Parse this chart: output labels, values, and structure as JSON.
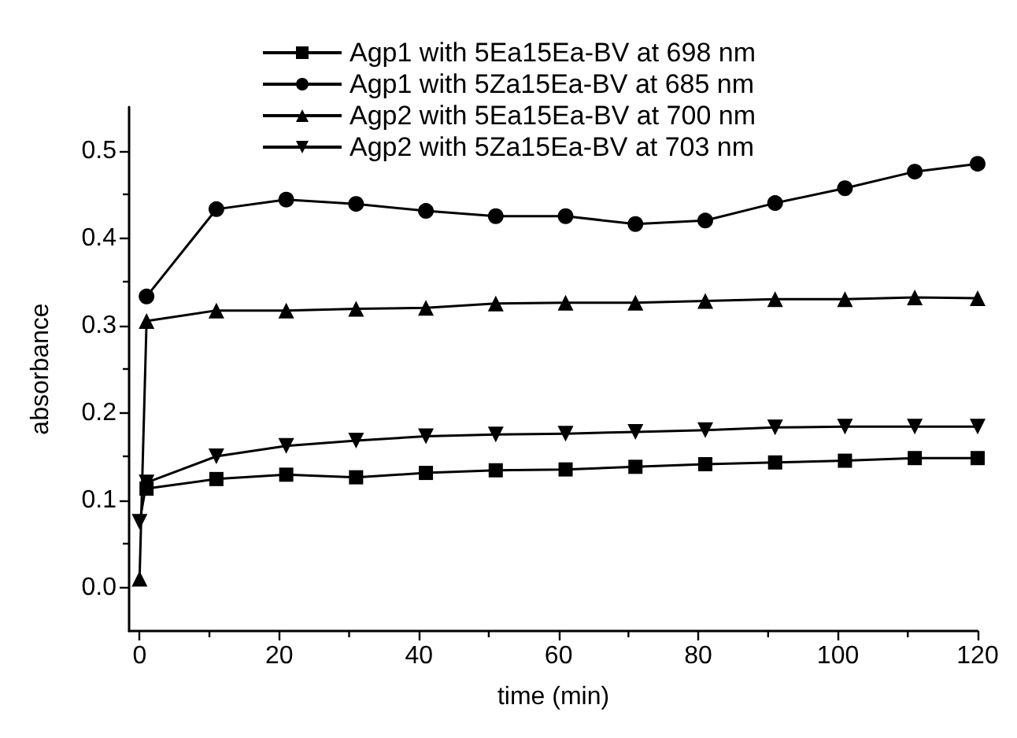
{
  "chart_data": {
    "type": "line",
    "xlabel": "time (min)",
    "ylabel": "absorbance",
    "xlim": [
      -1.5,
      120
    ],
    "xticks": [
      0,
      20,
      40,
      60,
      80,
      100,
      120
    ],
    "ylim": [
      -0.05,
      0.55
    ],
    "yticks": [
      {
        "value": 0,
        "label": "0.0"
      },
      0.1,
      0.2,
      0.3,
      0.4,
      0.5
    ],
    "x": [
      0,
      1,
      11,
      21,
      31,
      41,
      51,
      61,
      71,
      81,
      91,
      101,
      111,
      120
    ],
    "legend": "top",
    "grid": false,
    "line_style": "solid",
    "series": [
      {
        "name": "Agp1 with 5Ea15Ea-BV at 698 nm",
        "color": "#000000",
        "marker": "square",
        "values": [
          null,
          0.113,
          0.124,
          0.129,
          0.126,
          0.131,
          0.134,
          0.135,
          0.138,
          0.141,
          0.143,
          0.145,
          0.148,
          0.148
        ]
      },
      {
        "name": "Agp1 with 5Za15Ea-BV at 685 nm",
        "color": "#000000",
        "marker": "circle",
        "values": [
          null,
          0.333,
          0.433,
          0.444,
          0.439,
          0.431,
          0.425,
          0.425,
          0.416,
          0.42,
          0.44,
          0.457,
          0.476,
          0.485
        ]
      },
      {
        "name": "Agp2 with 5Ea15Ea-BV at 700 nm",
        "color": "#000000",
        "marker": "triangle",
        "values": [
          0.01,
          0.305,
          0.317,
          0.317,
          0.319,
          0.32,
          0.325,
          0.326,
          0.326,
          0.328,
          0.33,
          0.33,
          0.332,
          0.331
        ]
      },
      {
        "name": "Agp2 with 5Za15Ea-BV at 703 nm",
        "color": "#000000",
        "marker": "triangle-down",
        "values": [
          0.075,
          0.12,
          0.15,
          0.162,
          0.168,
          0.173,
          0.175,
          0.176,
          0.178,
          0.18,
          0.183,
          0.184,
          0.184,
          0.184
        ]
      }
    ]
  }
}
